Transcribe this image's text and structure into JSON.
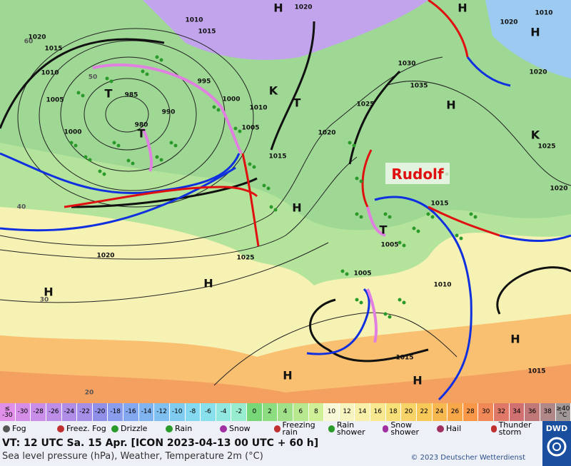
{
  "map": {
    "labels": [
      "H",
      "1020",
      "1010",
      "1015",
      "1020",
      "1015",
      "1010",
      "1005",
      "985",
      "990",
      "980",
      "1000",
      "995",
      "1000",
      "1010",
      "1005",
      "1015",
      "1020",
      "1025",
      "1030",
      "1035",
      "H",
      "1020",
      "1025",
      "1020",
      "1015",
      "H",
      "T",
      "1005",
      "1025",
      "1020",
      "H",
      "H",
      "1005",
      "1010",
      "H",
      "1015",
      "H",
      "H",
      "1015",
      "T",
      "T",
      "H",
      "1010",
      "1020",
      "H",
      "K",
      "K",
      "T",
      "60",
      "50",
      "40",
      "30",
      "20"
    ],
    "front_name": "Rudolf"
  },
  "scale": [
    {
      "label": "≤ -30",
      "color": "#e090e8"
    },
    {
      "label": "-30",
      "color": "#d48ee8"
    },
    {
      "label": "-28",
      "color": "#c88ee8"
    },
    {
      "label": "-26",
      "color": "#bc8ee8"
    },
    {
      "label": "-24",
      "color": "#b08ee8"
    },
    {
      "label": "-22",
      "color": "#a48ee8"
    },
    {
      "label": "-20",
      "color": "#9090e8"
    },
    {
      "label": "-18",
      "color": "#8a9cec"
    },
    {
      "label": "-16",
      "color": "#84a8f0"
    },
    {
      "label": "-14",
      "color": "#80b4f0"
    },
    {
      "label": "-12",
      "color": "#80c0f0"
    },
    {
      "label": "-10",
      "color": "#80ccf0"
    },
    {
      "label": "-8",
      "color": "#84d8f0"
    },
    {
      "label": "-6",
      "color": "#88e0ec"
    },
    {
      "label": "-4",
      "color": "#90e8e0"
    },
    {
      "label": "-2",
      "color": "#98ecd0"
    },
    {
      "label": "0",
      "color": "#78d878"
    },
    {
      "label": "2",
      "color": "#8cdc80"
    },
    {
      "label": "4",
      "color": "#a0e088"
    },
    {
      "label": "6",
      "color": "#b8e890"
    },
    {
      "label": "8",
      "color": "#d0f098"
    },
    {
      "label": "10",
      "color": "#f8f8d8"
    },
    {
      "label": "12",
      "color": "#f8f4c0"
    },
    {
      "label": "14",
      "color": "#f8f0a8"
    },
    {
      "label": "16",
      "color": "#f8e890"
    },
    {
      "label": "18",
      "color": "#f8e078"
    },
    {
      "label": "20",
      "color": "#f8d468"
    },
    {
      "label": "22",
      "color": "#f8c858"
    },
    {
      "label": "24",
      "color": "#f8b850"
    },
    {
      "label": "26",
      "color": "#f8a848"
    },
    {
      "label": "28",
      "color": "#f89848"
    },
    {
      "label": "30",
      "color": "#f08858"
    },
    {
      "label": "32",
      "color": "#e07868"
    },
    {
      "label": "34",
      "color": "#d07070"
    },
    {
      "label": "36",
      "color": "#c07878"
    },
    {
      "label": "38",
      "color": "#b08888"
    },
    {
      "label": "≥40 °C",
      "color": "#a09898"
    }
  ],
  "weather_legend": [
    {
      "label": "Fog",
      "color": "#555555"
    },
    {
      "label": "Freez. Fog",
      "color": "#c03030"
    },
    {
      "label": "Drizzle",
      "color": "#2a9a2a"
    },
    {
      "label": "Rain",
      "color": "#2a9a2a"
    },
    {
      "label": "Snow",
      "color": "#a030a0"
    },
    {
      "label": "Freezing rain",
      "color": "#c03030"
    },
    {
      "label": "Rain shower",
      "color": "#2a9a2a"
    },
    {
      "label": "Snow shower",
      "color": "#a030a0"
    },
    {
      "label": "Hail",
      "color": "#a03060"
    },
    {
      "label": "Thunder storm",
      "color": "#c03030"
    }
  ],
  "footer": {
    "valid_time": "VT: 12 UTC Sa.  15 Apr. [ICON 2023-04-13  00 UTC + 60 h]",
    "subtitle": "Sea level pressure (hPa), Weather, Temperature 2m (°C)",
    "copyright": "© 2023 Deutscher Wetterdienst",
    "logo": "DWD"
  }
}
